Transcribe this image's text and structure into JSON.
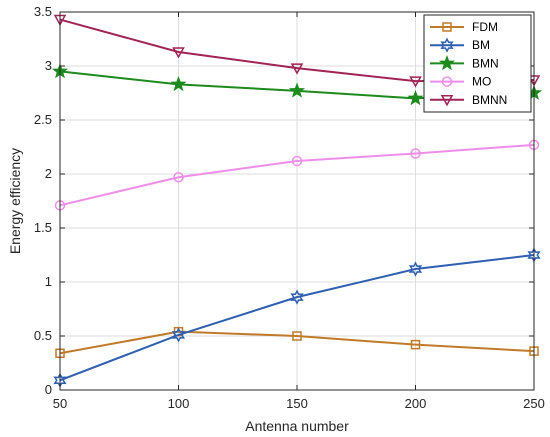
{
  "chart_data": {
    "type": "line",
    "title": "",
    "xlabel": "Antenna number",
    "ylabel": "Energy efficiency",
    "x": [
      50,
      100,
      150,
      200,
      250
    ],
    "xlim": [
      50,
      250
    ],
    "ylim": [
      0,
      3.5
    ],
    "xticks": [
      "50",
      "100",
      "150",
      "200",
      "250"
    ],
    "yticks": [
      "0",
      "0.5",
      "1",
      "1.5",
      "2",
      "2.5",
      "3",
      "3.5"
    ],
    "grid": true,
    "legend_position": "top-right",
    "series": [
      {
        "name": "FDM",
        "values": [
          0.34,
          0.54,
          0.5,
          0.42,
          0.36
        ],
        "color": "#c07a28",
        "marker": "square"
      },
      {
        "name": "BM",
        "values": [
          0.09,
          0.51,
          0.86,
          1.12,
          1.25
        ],
        "color": "#2e5fb0",
        "marker": "hexagram"
      },
      {
        "name": "BMN",
        "values": [
          2.95,
          2.83,
          2.77,
          2.7,
          2.75
        ],
        "color": "#1c8a1c",
        "marker": "pentagram"
      },
      {
        "name": "MO",
        "values": [
          1.71,
          1.97,
          2.12,
          2.19,
          2.27
        ],
        "color": "#ee8ee8",
        "marker": "circle"
      },
      {
        "name": "BMNN",
        "values": [
          3.43,
          3.13,
          2.98,
          2.86,
          2.87
        ],
        "color": "#a02456",
        "marker": "triangle-down"
      }
    ]
  }
}
